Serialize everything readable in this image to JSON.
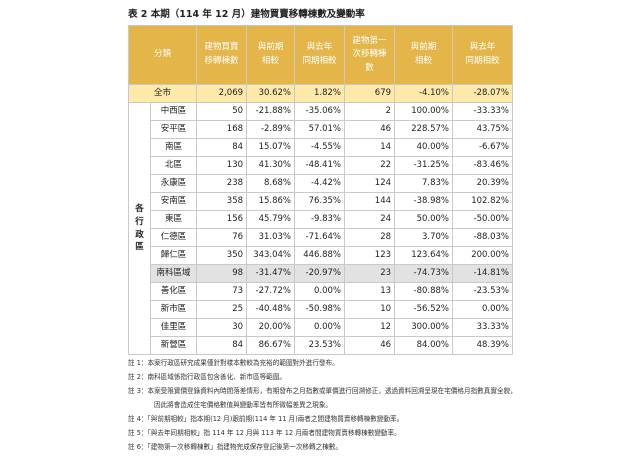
{
  "title": "表 2 本期（114 年 12 月）建物買賣移轉棟數及變動率",
  "table": {
    "headers": [
      "分類",
      "建物買賣\n移轉棟數",
      "與前期\n相較",
      "與去年\n同期相較",
      "建物第一\n次移轉棟\n數",
      "與前期\n相較",
      "與去年\n同期相較"
    ],
    "total": [
      "全市",
      "2,069",
      "30.62%",
      "1.82%",
      "679",
      "-4.10%",
      "-28.07%"
    ],
    "group_label": "各行政區",
    "rows": [
      [
        "中西區",
        "50",
        "-21.88%",
        "-35.06%",
        "2",
        "100.00%",
        "-33.33%"
      ],
      [
        "安平區",
        "168",
        "-2.89%",
        "57.01%",
        "46",
        "228.57%",
        "43.75%"
      ],
      [
        "南區",
        "84",
        "15.07%",
        "-4.55%",
        "14",
        "40.00%",
        "-6.67%"
      ],
      [
        "北區",
        "130",
        "41.30%",
        "-48.41%",
        "22",
        "-31.25%",
        "-83.46%"
      ],
      [
        "永康區",
        "238",
        "8.68%",
        "-4.42%",
        "124",
        "7.83%",
        "20.39%"
      ],
      [
        "安南區",
        "358",
        "15.86%",
        "76.35%",
        "144",
        "-38.98%",
        "102.82%"
      ],
      [
        "東區",
        "156",
        "45.79%",
        "-9.83%",
        "24",
        "50.00%",
        "-50.00%"
      ],
      [
        "仁德區",
        "76",
        "31.03%",
        "-71.64%",
        "28",
        "3.70%",
        "-88.03%"
      ],
      [
        "歸仁區",
        "350",
        "343.04%",
        "446.88%",
        "123",
        "123.64%",
        "200.00%"
      ],
      [
        "南科區域",
        "98",
        "-31.47%",
        "-20.97%",
        "23",
        "-74.73%",
        "-14.81%"
      ],
      [
        "善化區",
        "73",
        "-27.72%",
        "0.00%",
        "13",
        "-80.88%",
        "-23.53%"
      ],
      [
        "新市區",
        "25",
        "-40.48%",
        "-50.98%",
        "10",
        "-56.52%",
        "0.00%"
      ],
      [
        "佳里區",
        "30",
        "20.00%",
        "0.00%",
        "12",
        "300.00%",
        "33.33%"
      ],
      [
        "新營區",
        "84",
        "86.67%",
        "23.53%",
        "46",
        "84.00%",
        "48.39%"
      ]
    ]
  },
  "notes": [
    "註 1：本案行政區研究成果僅針對樣本數較為充裕的範圍對外進行發布。",
    "註 2：南科區域係指行政區包含善化、新市區等範圍。",
    "註 3：本案受限實價登錄資料內時間落差情形，有期發布之月指數或單價進行回溯修正，透過資料回溯呈現在宅價格月指數真實全貌，因此將會造成住宅價格數值與變動率皆有所微幅差異之現象。",
    "註 4：「與前期相較」指本期(12 月)跟前期(114 年 11 月)兩者之間建物買賣移轉棟數變動率。",
    "註 5：「與去年同期相較」指 114 年 12 月與 113 年 12 月兩者間建物買賣移轉棟數變動率。",
    "註 6：「建物第一次移轉棟數」指建物完成保存登記後第一次移轉之棟數。"
  ]
}
